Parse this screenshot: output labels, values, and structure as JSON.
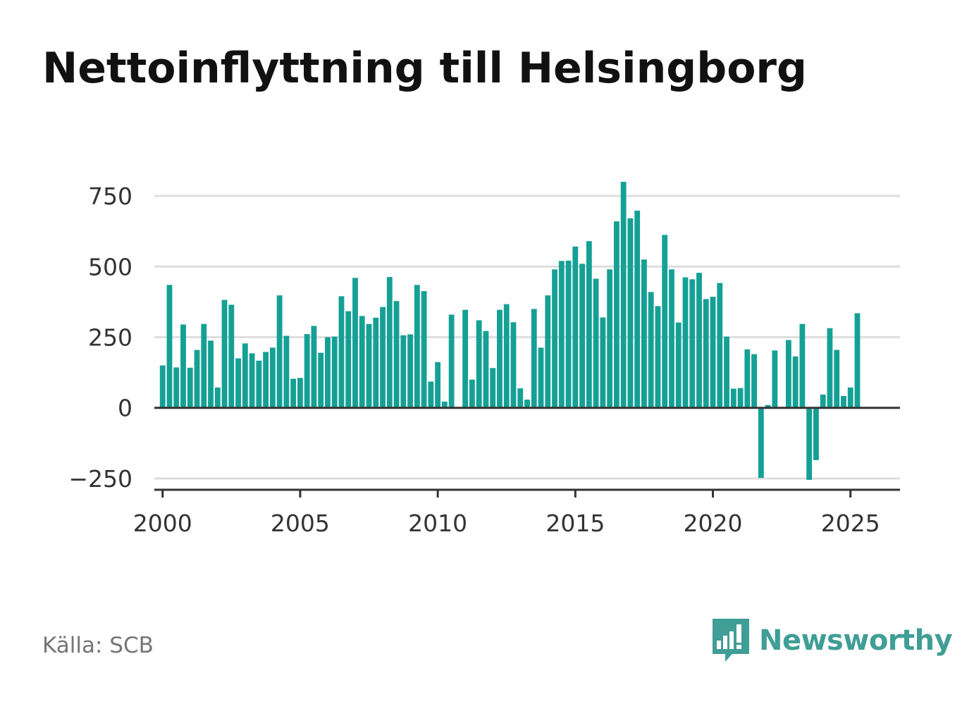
{
  "title": "Nettoinflyttning till Helsingborg",
  "source": "Källa: SCB",
  "brand": {
    "name": "Newsworthy",
    "icon": "newsworthy-logo-icon",
    "color": "#3f9e95"
  },
  "colors": {
    "bar": "#15a095",
    "grid": "#dedede",
    "axis": "#333333"
  },
  "chart_data": {
    "type": "bar",
    "title": "Nettoinflyttning till Helsingborg",
    "xlabel": "",
    "ylabel": "",
    "ylim": [
      -290,
      800
    ],
    "xlim": [
      1999.7,
      2026.8
    ],
    "grid": true,
    "yticks": [
      750,
      500,
      250,
      0,
      -250
    ],
    "ytick_labels": [
      "750",
      "500",
      "250",
      "0",
      "−250"
    ],
    "xticks": [
      2000,
      2005,
      2010,
      2015,
      2020,
      2025
    ],
    "xtick_labels": [
      "2000",
      "2005",
      "2010",
      "2015",
      "2020",
      "2025"
    ],
    "series": [
      {
        "frequency": "quarterly",
        "start": "2000 Q1",
        "values": [
          150,
          435,
          143,
          295,
          142,
          205,
          297,
          238,
          72,
          382,
          365,
          175,
          228,
          193,
          167,
          198,
          213,
          398,
          255,
          103,
          106,
          261,
          290,
          195,
          250,
          252,
          395,
          342,
          460,
          325,
          297,
          319,
          357,
          463,
          378,
          257,
          260,
          435,
          413,
          93,
          162,
          22,
          330,
          0,
          347,
          100,
          310,
          272,
          141,
          347,
          367,
          303,
          69,
          29,
          350,
          213,
          398,
          490,
          520,
          521,
          571,
          510,
          590,
          457,
          320,
          490,
          660,
          800,
          671,
          698,
          525,
          410,
          360,
          612,
          490,
          302,
          462,
          455,
          478,
          385,
          393,
          442,
          252,
          68,
          70,
          207,
          190,
          -248,
          10,
          203,
          0,
          240,
          182,
          297,
          -255,
          -185,
          47,
          282,
          205,
          42,
          72,
          335
        ]
      }
    ]
  }
}
